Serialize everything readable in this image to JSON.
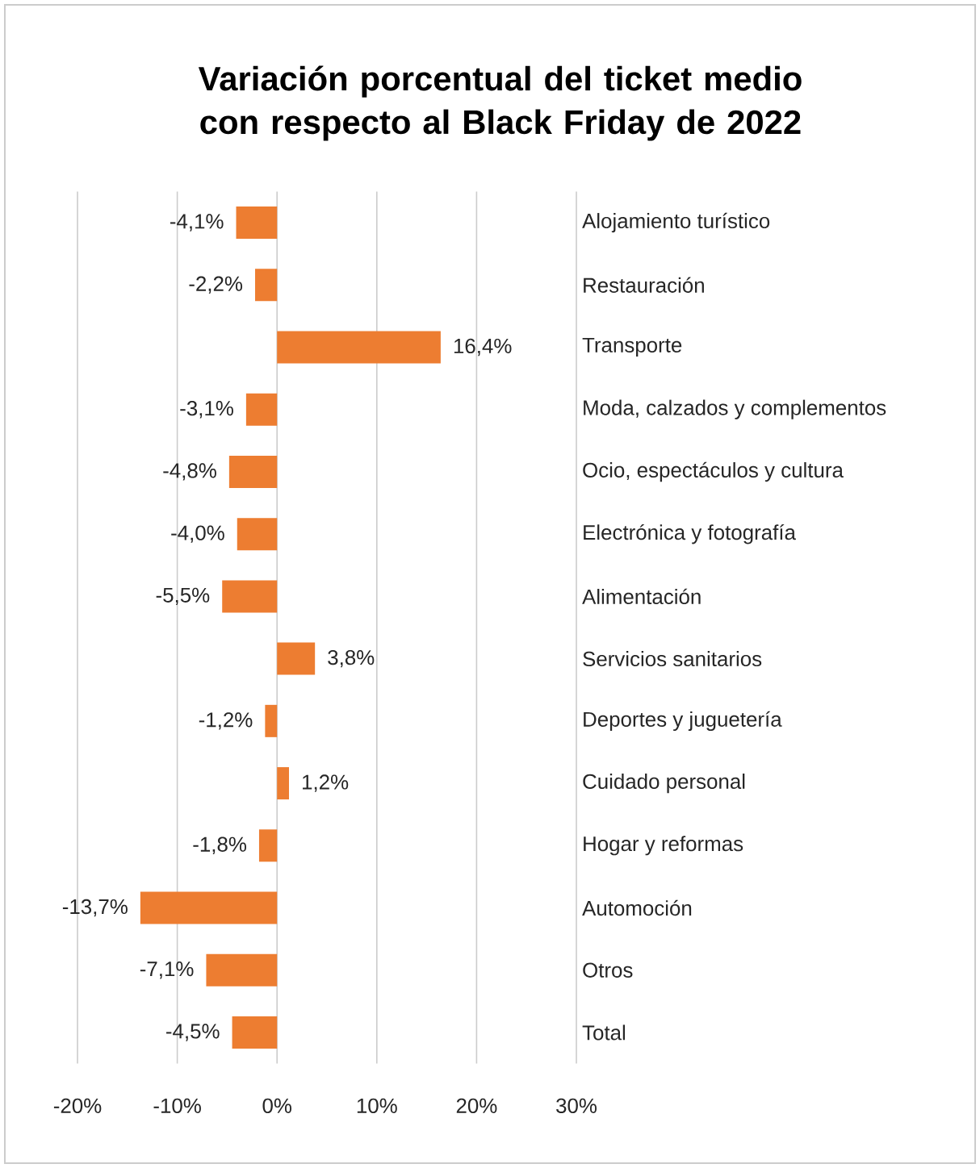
{
  "chart_data": {
    "type": "bar",
    "orientation": "horizontal",
    "title": "Variación porcentual del ticket medio con respecto al Black Friday de 2022",
    "categories": [
      "Alojamiento turístico",
      "Restauración",
      "Transporte",
      "Moda, calzados y complementos",
      "Ocio, espectáculos y cultura",
      "Electrónica y fotografía",
      "Alimentación",
      "Servicios sanitarios",
      "Deportes y juguetería",
      "Cuidado personal",
      "Hogar y reformas",
      "Automoción",
      "Otros",
      "Total"
    ],
    "values": [
      -4.1,
      -2.2,
      16.4,
      -3.1,
      -4.8,
      -4.0,
      -5.5,
      3.8,
      -1.2,
      1.2,
      -1.8,
      -13.7,
      -7.1,
      -4.5
    ],
    "value_labels": [
      "-4,1%",
      "-2,2%",
      "16,4%",
      "-3,1%",
      "-4,8%",
      "-4,0%",
      "-5,5%",
      "3,8%",
      "-1,2%",
      "1,2%",
      "-1,8%",
      "-13,7%",
      "-7,1%",
      "-4,5%"
    ],
    "color": "#ed7d31",
    "xlim": [
      -20,
      30
    ],
    "xticks": [
      {
        "value": -20,
        "label": "-20%"
      },
      {
        "value": -10,
        "label": "-10%"
      },
      {
        "value": 0,
        "label": "0%"
      },
      {
        "value": 10,
        "label": "10%"
      },
      {
        "value": 20,
        "label": "20%"
      },
      {
        "value": 30,
        "label": "30%"
      }
    ],
    "grid": "x"
  }
}
